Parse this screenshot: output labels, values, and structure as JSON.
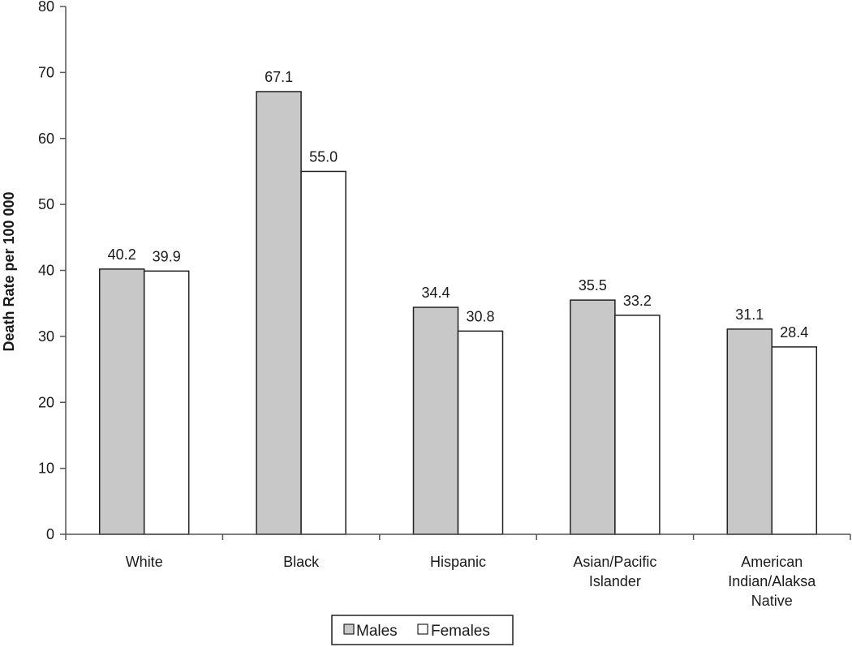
{
  "chart_data": {
    "type": "bar",
    "title": "",
    "xlabel": "",
    "ylabel": "Death Rate per 100 000",
    "ylim": [
      0,
      80
    ],
    "yticks": [
      0,
      10,
      20,
      30,
      40,
      50,
      60,
      70,
      80
    ],
    "categories": [
      [
        "White"
      ],
      [
        "Black"
      ],
      [
        "Hispanic"
      ],
      [
        "Asian/Pacific",
        "Islander"
      ],
      [
        "American",
        "Indian/Alaksa",
        "Native"
      ]
    ],
    "series": [
      {
        "name": "Males",
        "values": [
          40.2,
          67.1,
          34.4,
          35.5,
          31.1
        ],
        "labels": [
          "40.2",
          "67.1",
          "34.4",
          "35.5",
          "31.1"
        ],
        "color": "#c8c8c8"
      },
      {
        "name": "Females",
        "values": [
          39.9,
          55.0,
          30.8,
          33.2,
          28.4
        ],
        "labels": [
          "39.9",
          "55.0",
          "30.8",
          "33.2",
          "28.4"
        ],
        "color": "#ffffff"
      }
    ],
    "grid": false,
    "legend": "bottom-center"
  }
}
